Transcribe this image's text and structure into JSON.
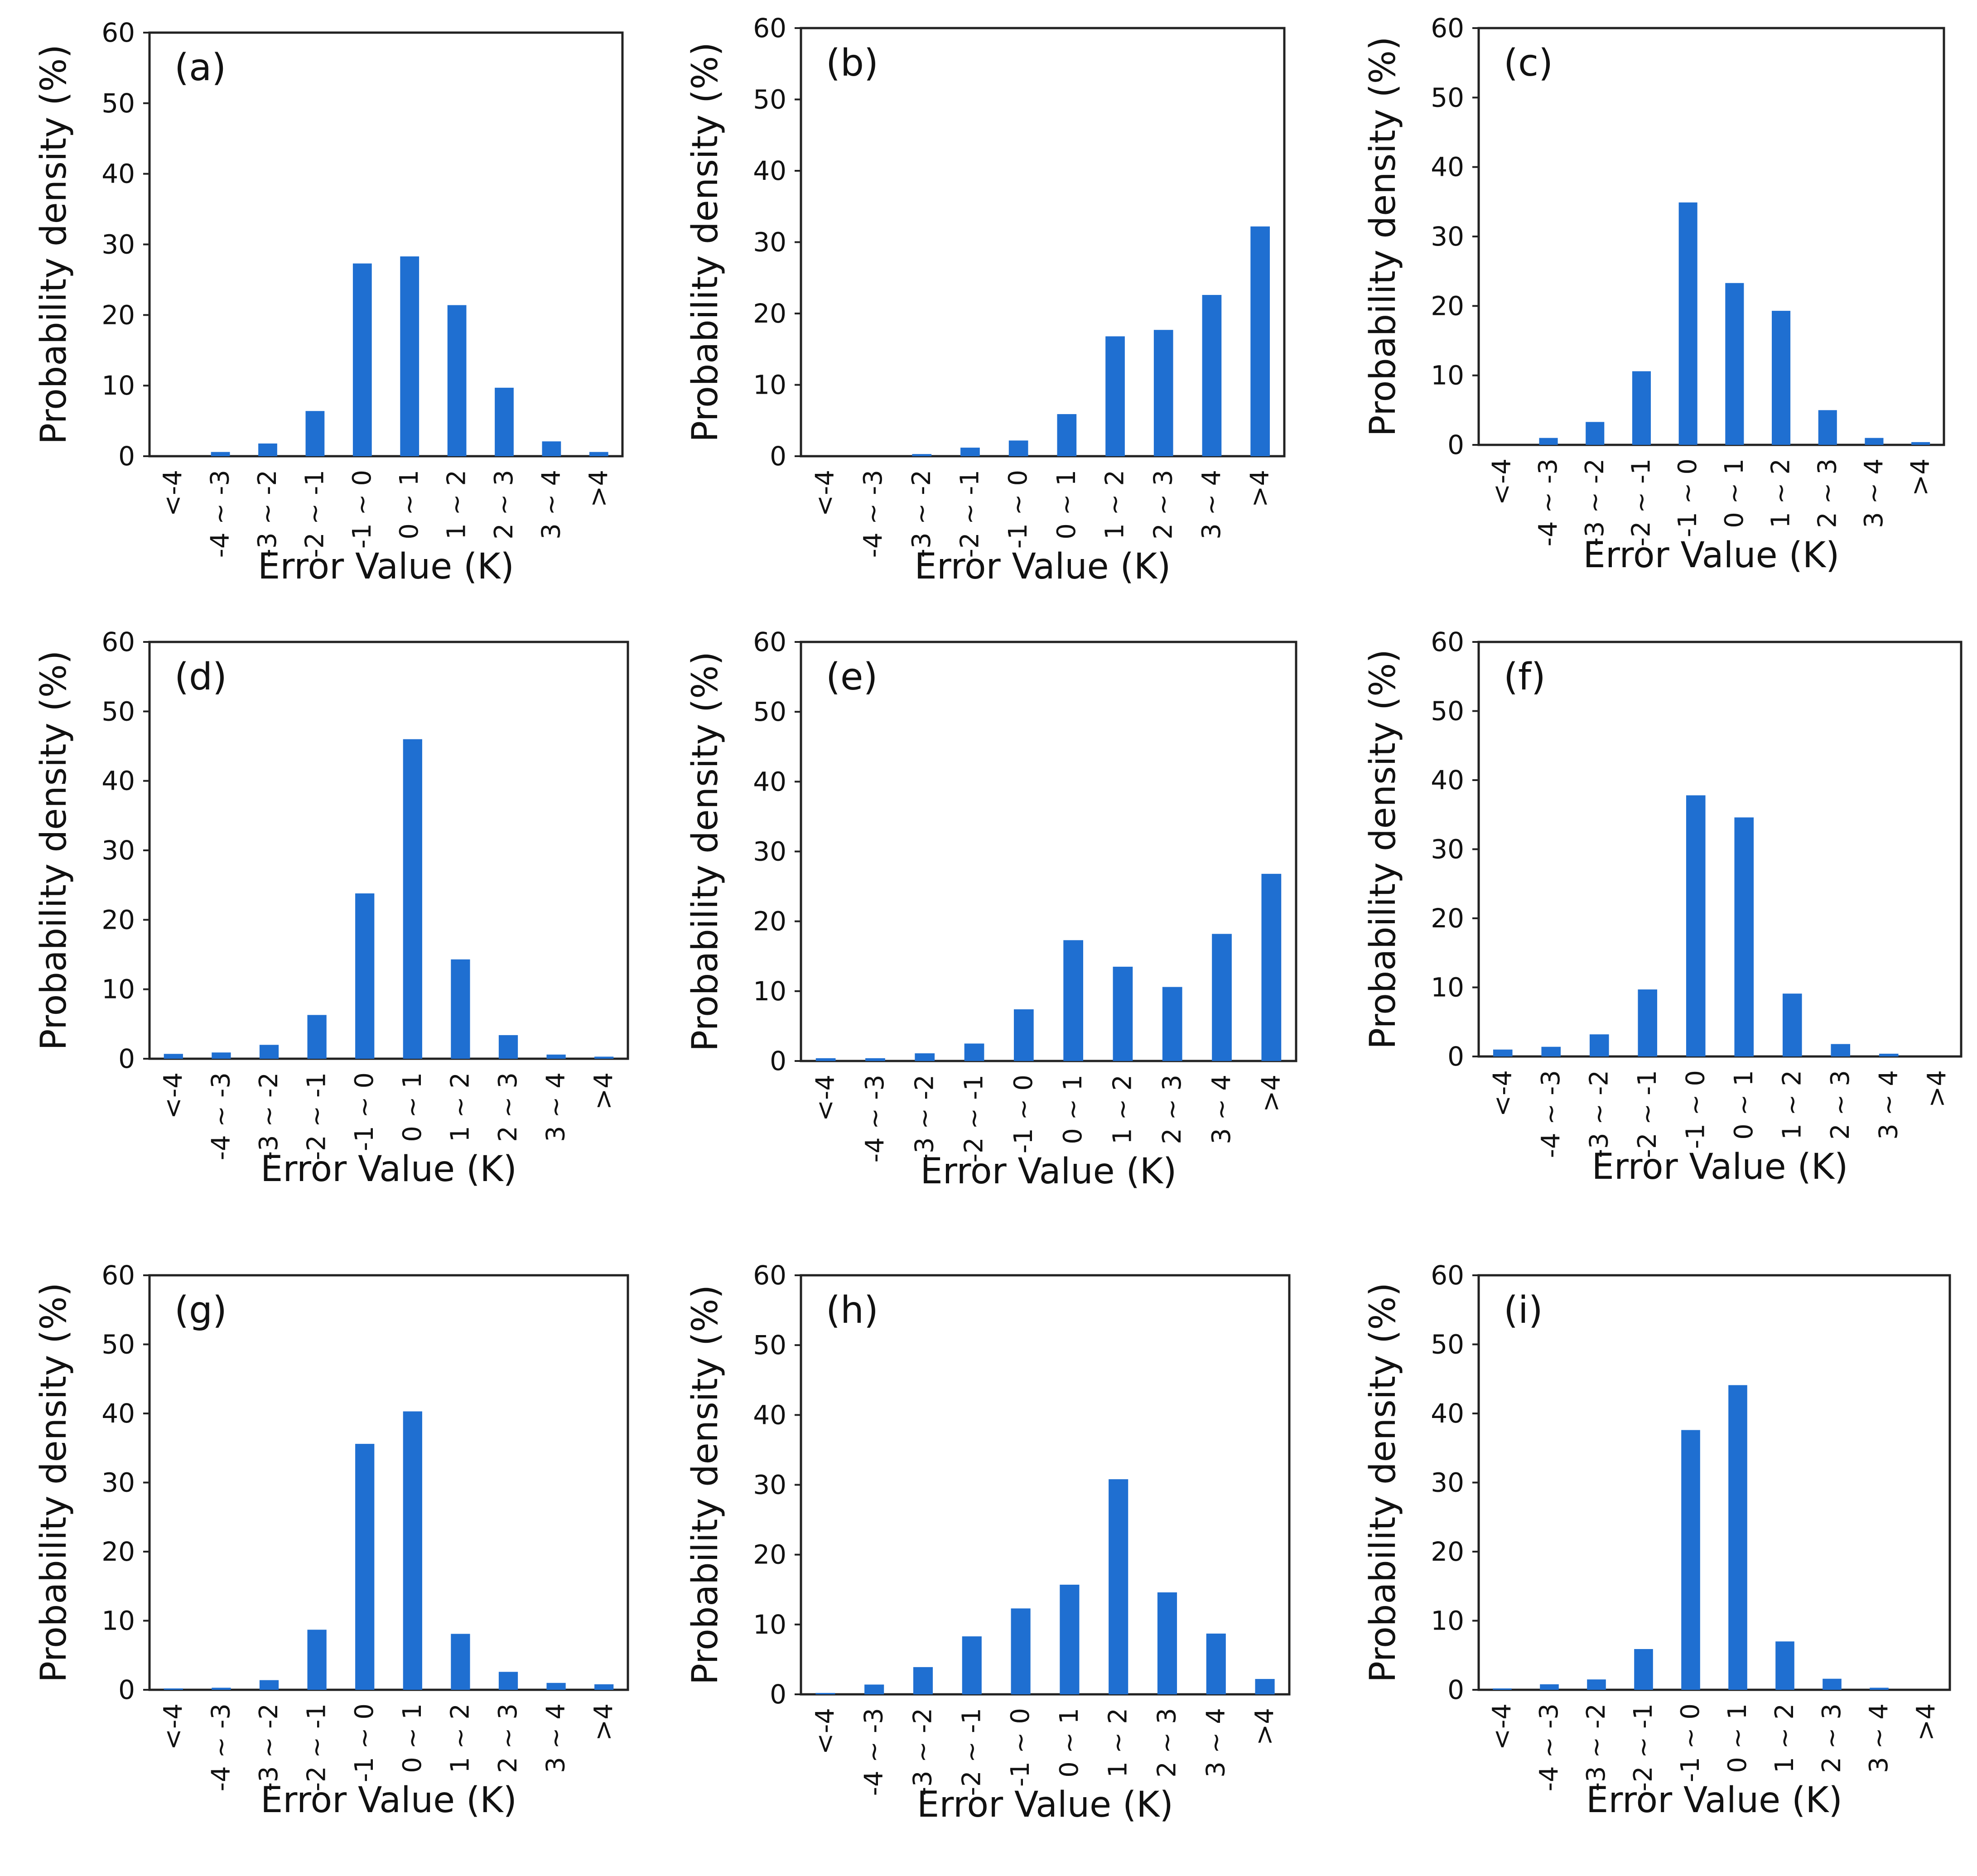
{
  "chart_data": [
    {
      "panel": "(a)",
      "type": "bar",
      "categories": [
        "<-4",
        "-4 ~ -3",
        "-3 ~ -2",
        "-2 ~ -1",
        "-1 ~ 0",
        "0 ~ 1",
        "1 ~ 2",
        "2 ~ 3",
        "3 ~ 4",
        ">4"
      ],
      "values": [
        0,
        0.6,
        1.8,
        6.4,
        27.3,
        28.3,
        21.4,
        9.7,
        2.1,
        0.6
      ],
      "xlabel": "Error Value (K)",
      "ylabel": "Probability density (%)",
      "yticks": [
        "0",
        "10",
        "20",
        "30",
        "40",
        "50",
        "60"
      ],
      "ylim": [
        0,
        60
      ],
      "color": "#1f6fd1"
    },
    {
      "panel": "(b)",
      "type": "bar",
      "categories": [
        "<-4",
        "-4 ~ -3",
        "-3 ~ -2",
        "-2 ~ -1",
        "-1 ~ 0",
        "0 ~ 1",
        "1 ~ 2",
        "2 ~ 3",
        "3 ~ 4",
        ">4"
      ],
      "values": [
        0,
        0,
        0.3,
        1.2,
        2.2,
        5.9,
        16.8,
        17.7,
        22.6,
        32.2
      ],
      "xlabel": "Error Value (K)",
      "ylabel": "Probability density (%)",
      "yticks": [
        "0",
        "10",
        "20",
        "30",
        "40",
        "50",
        "60"
      ],
      "ylim": [
        0,
        60
      ],
      "color": "#1f6fd1"
    },
    {
      "panel": "(c)",
      "type": "bar",
      "categories": [
        "<-4",
        "-4 ~ -3",
        "-3 ~ -2",
        "-2 ~ -1",
        "-1 ~ 0",
        "0 ~ 1",
        "1 ~ 2",
        "2 ~ 3",
        "3 ~ 4",
        ">4"
      ],
      "values": [
        0,
        1.0,
        3.3,
        10.6,
        34.9,
        23.3,
        19.3,
        5.0,
        1.0,
        0.4
      ],
      "xlabel": "Error Value (K)",
      "ylabel": "Probability density (%)",
      "yticks": [
        "0",
        "10",
        "20",
        "30",
        "40",
        "50",
        "60"
      ],
      "ylim": [
        0,
        60
      ],
      "color": "#1f6fd1"
    },
    {
      "panel": "(d)",
      "type": "bar",
      "categories": [
        "<-4",
        "-4 ~ -3",
        "-3 ~ -2",
        "-2 ~ -1",
        "-1 ~ 0",
        "0 ~ 1",
        "1 ~ 2",
        "2 ~ 3",
        "3 ~ 4",
        ">4"
      ],
      "values": [
        0.7,
        0.9,
        2.0,
        6.3,
        23.8,
        46.0,
        14.3,
        3.4,
        0.6,
        0.3
      ],
      "xlabel": "Error Value (K)",
      "ylabel": "Probability density (%)",
      "yticks": [
        "0",
        "10",
        "20",
        "30",
        "40",
        "50",
        "60"
      ],
      "ylim": [
        0,
        60
      ],
      "color": "#1f6fd1"
    },
    {
      "panel": "(e)",
      "type": "bar",
      "categories": [
        "<-4",
        "-4 ~ -3",
        "-3 ~ -2",
        "-2 ~ -1",
        "-1 ~ 0",
        "0 ~ 1",
        "1 ~ 2",
        "2 ~ 3",
        "3 ~ 4",
        ">4"
      ],
      "values": [
        0.4,
        0.4,
        1.1,
        2.5,
        7.4,
        17.3,
        13.5,
        10.6,
        18.2,
        26.8
      ],
      "xlabel": "Error Value (K)",
      "ylabel": "Probability density (%)",
      "yticks": [
        "0",
        "10",
        "20",
        "30",
        "40",
        "50",
        "60"
      ],
      "ylim": [
        0,
        60
      ],
      "color": "#1f6fd1"
    },
    {
      "panel": "(f)",
      "type": "bar",
      "categories": [
        "<-4",
        "-4 ~ -3",
        "-3 ~ -2",
        "-2 ~ -1",
        "-1 ~ 0",
        "0 ~ 1",
        "1 ~ 2",
        "2 ~ 3",
        "3 ~ 4",
        ">4"
      ],
      "values": [
        1.0,
        1.4,
        3.2,
        9.7,
        37.8,
        34.6,
        9.1,
        1.8,
        0.4,
        0
      ],
      "xlabel": "Error Value (K)",
      "ylabel": "Probability density (%)",
      "yticks": [
        "0",
        "10",
        "20",
        "30",
        "40",
        "50",
        "60"
      ],
      "ylim": [
        0,
        60
      ],
      "color": "#1f6fd1"
    },
    {
      "panel": "(g)",
      "type": "bar",
      "categories": [
        "<-4",
        "-4 ~ -3",
        "-3 ~ -2",
        "-2 ~ -1",
        "-1 ~ 0",
        "0 ~ 1",
        "1 ~ 2",
        "2 ~ 3",
        "3 ~ 4",
        ">4"
      ],
      "values": [
        0.2,
        0.3,
        1.4,
        8.7,
        35.6,
        40.3,
        8.1,
        2.6,
        1.0,
        0.8
      ],
      "xlabel": "Error Value (K)",
      "ylabel": "Probability density (%)",
      "yticks": [
        "0",
        "10",
        "20",
        "30",
        "40",
        "50",
        "60"
      ],
      "ylim": [
        0,
        60
      ],
      "color": "#1f6fd1"
    },
    {
      "panel": "(h)",
      "type": "bar",
      "categories": [
        "<-4",
        "-4 ~ -3",
        "-3 ~ -2",
        "-2 ~ -1",
        "-1 ~ 0",
        "0 ~ 1",
        "1 ~ 2",
        "2 ~ 3",
        "3 ~ 4",
        ">4"
      ],
      "values": [
        0.2,
        1.4,
        3.9,
        8.3,
        12.3,
        15.7,
        30.8,
        14.6,
        8.7,
        2.2
      ],
      "xlabel": "Error Value (K)",
      "ylabel": "Probability density (%)",
      "yticks": [
        "0",
        "10",
        "20",
        "30",
        "40",
        "50",
        "60"
      ],
      "ylim": [
        0,
        60
      ],
      "color": "#1f6fd1"
    },
    {
      "panel": "(i)",
      "type": "bar",
      "categories": [
        "<-4",
        "-4 ~ -3",
        "-3 ~ -2",
        "-2 ~ -1",
        "-1 ~ 0",
        "0 ~ 1",
        "1 ~ 2",
        "2 ~ 3",
        "3 ~ 4",
        ">4"
      ],
      "values": [
        0.2,
        0.8,
        1.5,
        5.9,
        37.6,
        44.1,
        7.0,
        1.6,
        0.3,
        0
      ],
      "xlabel": "Error Value (K)",
      "ylabel": "Probability density (%)",
      "yticks": [
        "0",
        "10",
        "20",
        "30",
        "40",
        "50",
        "60"
      ],
      "ylim": [
        0,
        60
      ],
      "color": "#1f6fd1"
    }
  ]
}
